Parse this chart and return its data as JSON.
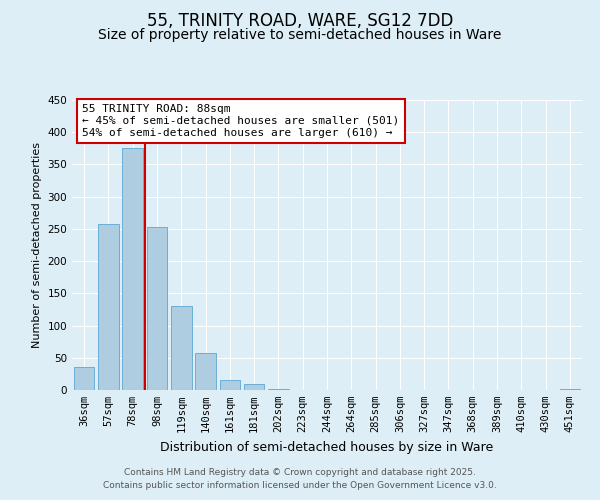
{
  "title": "55, TRINITY ROAD, WARE, SG12 7DD",
  "subtitle": "Size of property relative to semi-detached houses in Ware",
  "xlabel": "Distribution of semi-detached houses by size in Ware",
  "ylabel": "Number of semi-detached properties",
  "bar_color": "#aecde1",
  "bar_edge_color": "#6baed6",
  "background_color": "#ddeef6",
  "grid_color": "#ffffff",
  "categories": [
    "36sqm",
    "57sqm",
    "78sqm",
    "98sqm",
    "119sqm",
    "140sqm",
    "161sqm",
    "181sqm",
    "202sqm",
    "223sqm",
    "244sqm",
    "264sqm",
    "285sqm",
    "306sqm",
    "327sqm",
    "347sqm",
    "368sqm",
    "389sqm",
    "410sqm",
    "430sqm",
    "451sqm"
  ],
  "values": [
    35,
    257,
    375,
    253,
    130,
    57,
    15,
    10,
    1,
    0,
    0,
    0,
    0,
    0,
    0,
    0,
    0,
    0,
    0,
    0,
    2
  ],
  "ylim": [
    0,
    450
  ],
  "yticks": [
    0,
    50,
    100,
    150,
    200,
    250,
    300,
    350,
    400,
    450
  ],
  "property_line_x": 2.5,
  "annotation_title": "55 TRINITY ROAD: 88sqm",
  "annotation_line1": "← 45% of semi-detached houses are smaller (501)",
  "annotation_line2": "54% of semi-detached houses are larger (610) →",
  "annotation_box_color": "#ffffff",
  "annotation_box_edge": "#cc0000",
  "vline_color": "#cc0000",
  "footer1": "Contains HM Land Registry data © Crown copyright and database right 2025.",
  "footer2": "Contains public sector information licensed under the Open Government Licence v3.0.",
  "title_fontsize": 12,
  "subtitle_fontsize": 10,
  "xlabel_fontsize": 9,
  "ylabel_fontsize": 8,
  "tick_fontsize": 7.5,
  "annotation_fontsize": 8,
  "footer_fontsize": 6.5
}
